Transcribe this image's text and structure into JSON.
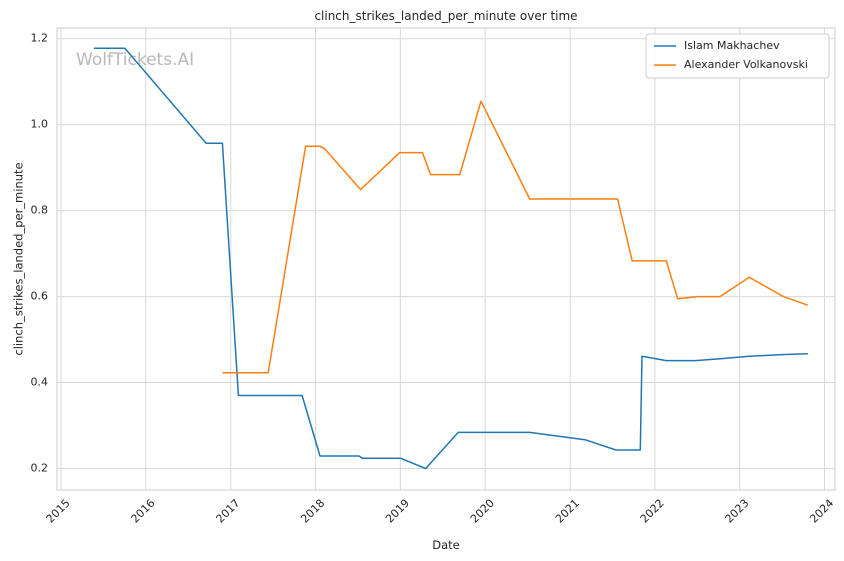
{
  "chart_data": {
    "type": "line",
    "title": "clinch_strikes_landed_per_minute over time",
    "xlabel": "Date",
    "ylabel": "clinch_strikes_landed_per_minute",
    "watermark": "WolfTickets.AI",
    "xlim": [
      "2014-12-15",
      "2024-02-15"
    ],
    "ylim": [
      0.15,
      1.225
    ],
    "x_ticks": [
      "2015-01-01",
      "2016-01-01",
      "2017-01-01",
      "2018-01-01",
      "2019-01-01",
      "2020-01-01",
      "2021-01-01",
      "2022-01-01",
      "2023-01-01",
      "2024-01-01"
    ],
    "x_tick_labels": [
      "2015",
      "2016",
      "2017",
      "2018",
      "2019",
      "2020",
      "2021",
      "2022",
      "2023",
      "2024"
    ],
    "y_ticks": [
      0.2,
      0.4,
      0.6,
      0.8,
      1.0,
      1.2
    ],
    "y_tick_labels": [
      "0.2",
      "0.4",
      "0.6",
      "0.8",
      "1.0",
      "1.2"
    ],
    "grid": true,
    "legend_position": "top-right",
    "series": [
      {
        "name": "Islam Makhachev",
        "color": "#1f77b4",
        "points": [
          [
            "2015-05-23",
            1.178
          ],
          [
            "2015-10-03",
            1.178
          ],
          [
            "2016-09-17",
            0.957
          ],
          [
            "2016-11-26",
            0.957
          ],
          [
            "2017-02-03",
            0.37
          ],
          [
            "2017-11-04",
            0.37
          ],
          [
            "2018-01-20",
            0.229
          ],
          [
            "2018-07-07",
            0.229
          ],
          [
            "2018-07-21",
            0.224
          ],
          [
            "2019-01-01",
            0.224
          ],
          [
            "2019-04-20",
            0.2
          ],
          [
            "2019-09-07",
            0.284
          ],
          [
            "2020-07-11",
            0.284
          ],
          [
            "2021-03-06",
            0.267
          ],
          [
            "2021-07-17",
            0.243
          ],
          [
            "2021-10-30",
            0.243
          ],
          [
            "2021-11-06",
            0.461
          ],
          [
            "2022-02-19",
            0.451
          ],
          [
            "2022-06-25",
            0.451
          ],
          [
            "2022-10-22",
            0.456
          ],
          [
            "2023-02-11",
            0.461
          ],
          [
            "2023-07-01",
            0.465
          ],
          [
            "2023-10-21",
            0.467
          ]
        ]
      },
      {
        "name": "Alexander Volkanovski",
        "color": "#ff7f0e",
        "points": [
          [
            "2016-11-26",
            0.423
          ],
          [
            "2017-06-11",
            0.423
          ],
          [
            "2017-11-19",
            0.95
          ],
          [
            "2018-01-20",
            0.95
          ],
          [
            "2018-02-11",
            0.943
          ],
          [
            "2018-07-14",
            0.849
          ],
          [
            "2018-12-29",
            0.935
          ],
          [
            "2019-04-06",
            0.935
          ],
          [
            "2019-05-11",
            0.884
          ],
          [
            "2019-09-14",
            0.884
          ],
          [
            "2019-12-14",
            1.055
          ],
          [
            "2020-07-11",
            0.827
          ],
          [
            "2021-07-24",
            0.827
          ],
          [
            "2021-09-25",
            0.683
          ],
          [
            "2022-02-19",
            0.683
          ],
          [
            "2022-04-09",
            0.595
          ],
          [
            "2022-07-02",
            0.6
          ],
          [
            "2022-10-08",
            0.6
          ],
          [
            "2023-02-11",
            0.645
          ],
          [
            "2023-07-08",
            0.6
          ],
          [
            "2023-10-21",
            0.58
          ]
        ]
      }
    ]
  }
}
